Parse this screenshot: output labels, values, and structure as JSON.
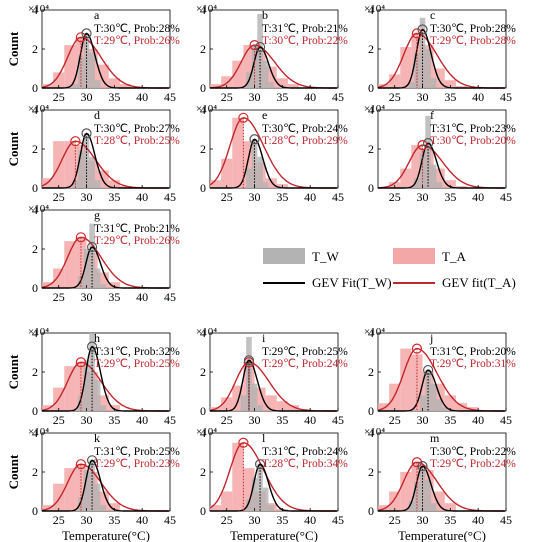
{
  "figure": {
    "colors": {
      "tw_bar": "#b3b3b3",
      "ta_bar": "#f4a7a7",
      "tw_line": "#000000",
      "ta_line": "#c1272d",
      "ta_text": "#c1272d",
      "tw_text": "#000000",
      "tw_marker": "#555555",
      "ta_marker": "#d62728"
    },
    "legend": {
      "tw_bar": "T_W",
      "ta_bar": "T_A",
      "tw_fit": "GEV Fit(T_W)",
      "ta_fit": "GEV fit(T_A)"
    },
    "ylabel": "Count",
    "xlabel": "Temperature(°C)",
    "exponent_label": "×10⁴"
  },
  "chart_data": [
    {
      "type": "bar",
      "panel": "a",
      "xlim": [
        22,
        45
      ],
      "ylim": [
        0,
        4
      ],
      "xticks": [
        25,
        30,
        35,
        40,
        45
      ],
      "yticks": [
        0,
        2,
        4
      ],
      "tw_label": "T:30℃, Prob:28%",
      "ta_label": "T:29℃, Prob:26%",
      "tw_peak": {
        "x": 30,
        "y": 2.8
      },
      "ta_peak": {
        "x": 29,
        "y": 2.6
      },
      "tw_hist": [
        [
          28,
          0.2
        ],
        [
          29,
          1.6
        ],
        [
          30,
          2.8
        ],
        [
          31,
          1.8
        ],
        [
          32,
          0.4
        ]
      ],
      "ta_hist": [
        [
          23,
          0.2
        ],
        [
          25,
          0.8
        ],
        [
          27,
          2.2
        ],
        [
          29,
          2.6
        ],
        [
          31,
          2.0
        ],
        [
          33,
          1.2
        ],
        [
          35,
          0.5
        ],
        [
          37,
          0.2
        ]
      ]
    },
    {
      "type": "bar",
      "panel": "b",
      "xlim": [
        22,
        45
      ],
      "ylim": [
        0,
        4
      ],
      "xticks": [
        25,
        30,
        35,
        40,
        45
      ],
      "yticks": [
        0,
        2,
        4
      ],
      "tw_label": "T:31℃, Prob:21%",
      "ta_label": "T:30℃, Prob:22%",
      "tw_peak": {
        "x": 31,
        "y": 2.1
      },
      "ta_peak": {
        "x": 30,
        "y": 2.2
      },
      "tw_hist": [
        [
          29,
          0.8
        ],
        [
          30,
          2.2
        ],
        [
          31,
          3.8
        ],
        [
          32,
          1.4
        ],
        [
          33,
          0.3
        ]
      ],
      "ta_hist": [
        [
          23,
          0.2
        ],
        [
          25,
          0.6
        ],
        [
          27,
          1.4
        ],
        [
          29,
          2.2
        ],
        [
          31,
          1.9
        ],
        [
          33,
          1.1
        ],
        [
          35,
          0.5
        ],
        [
          37,
          0.2
        ]
      ]
    },
    {
      "type": "bar",
      "panel": "c",
      "xlim": [
        22,
        45
      ],
      "ylim": [
        0,
        4
      ],
      "xticks": [
        25,
        30,
        35,
        40,
        45
      ],
      "yticks": [
        0,
        2,
        4
      ],
      "tw_label": "T:30℃, Prob:28%",
      "ta_label": "T:29℃, Prob:28%",
      "tw_peak": {
        "x": 30,
        "y": 3.0
      },
      "ta_peak": {
        "x": 29,
        "y": 2.8
      },
      "tw_hist": [
        [
          28,
          0.3
        ],
        [
          29,
          1.8
        ],
        [
          30,
          3.6
        ],
        [
          31,
          2.0
        ],
        [
          32,
          0.5
        ]
      ],
      "ta_hist": [
        [
          23,
          0.2
        ],
        [
          25,
          0.7
        ],
        [
          27,
          2.1
        ],
        [
          29,
          2.8
        ],
        [
          31,
          2.2
        ],
        [
          33,
          1.0
        ],
        [
          35,
          0.4
        ],
        [
          37,
          0.1
        ]
      ]
    },
    {
      "type": "bar",
      "panel": "d",
      "xlim": [
        22,
        45
      ],
      "ylim": [
        0,
        4
      ],
      "xticks": [
        25,
        30,
        35,
        40,
        45
      ],
      "yticks": [
        0,
        2,
        4
      ],
      "tw_label": "T:30℃, Prob:27%",
      "ta_label": "T:28℃, Prob:25%",
      "tw_peak": {
        "x": 30,
        "y": 2.8
      },
      "ta_peak": {
        "x": 28,
        "y": 2.4
      },
      "tw_hist": [
        [
          28,
          0.4
        ],
        [
          29,
          1.9
        ],
        [
          30,
          2.8
        ],
        [
          31,
          1.6
        ],
        [
          32,
          0.4
        ]
      ],
      "ta_hist": [
        [
          23,
          0.5
        ],
        [
          25,
          2.4
        ],
        [
          27,
          2.4
        ],
        [
          29,
          2.2
        ],
        [
          31,
          1.4
        ],
        [
          33,
          0.9
        ],
        [
          35,
          0.4
        ],
        [
          37,
          0.1
        ]
      ]
    },
    {
      "type": "bar",
      "panel": "e",
      "xlim": [
        22,
        45
      ],
      "ylim": [
        0,
        4
      ],
      "xticks": [
        25,
        30,
        35,
        40,
        45
      ],
      "yticks": [
        0,
        2,
        4
      ],
      "tw_label": "T:30℃, Prob:24%",
      "ta_label": "T:28℃, Prob:29%",
      "tw_peak": {
        "x": 30,
        "y": 2.5
      },
      "ta_peak": {
        "x": 28,
        "y": 3.6
      },
      "tw_hist": [
        [
          29,
          1.0
        ],
        [
          30,
          2.5
        ],
        [
          31,
          1.6
        ],
        [
          32,
          0.3
        ]
      ],
      "ta_hist": [
        [
          23,
          0.4
        ],
        [
          25,
          1.5
        ],
        [
          27,
          3.6
        ],
        [
          29,
          2.4
        ],
        [
          31,
          1.3
        ],
        [
          33,
          0.5
        ],
        [
          35,
          0.2
        ]
      ]
    },
    {
      "type": "bar",
      "panel": "f",
      "xlim": [
        22,
        45
      ],
      "ylim": [
        0,
        4
      ],
      "xticks": [
        25,
        30,
        35,
        40,
        45
      ],
      "yticks": [
        0,
        2,
        4
      ],
      "tw_label": "T:31℃, Prob:23%",
      "ta_label": "T:30℃, Prob:20%",
      "tw_peak": {
        "x": 31,
        "y": 2.3
      },
      "ta_peak": {
        "x": 30,
        "y": 2.2
      },
      "tw_hist": [
        [
          29,
          0.5
        ],
        [
          30,
          1.8
        ],
        [
          31,
          3.7
        ],
        [
          32,
          1.2
        ],
        [
          33,
          0.3
        ]
      ],
      "ta_hist": [
        [
          25,
          0.3
        ],
        [
          27,
          1.0
        ],
        [
          29,
          2.2
        ],
        [
          31,
          2.0
        ],
        [
          33,
          1.0
        ],
        [
          35,
          0.4
        ],
        [
          37,
          0.1
        ]
      ]
    },
    {
      "type": "bar",
      "panel": "g",
      "xlim": [
        22,
        45
      ],
      "ylim": [
        0,
        4
      ],
      "xticks": [
        25,
        30,
        35,
        40,
        45
      ],
      "yticks": [
        0,
        2,
        4
      ],
      "tw_label": "T:31℃, Prob:21%",
      "ta_label": "T:29℃, Prob:26%",
      "tw_peak": {
        "x": 31,
        "y": 2.1
      },
      "ta_peak": {
        "x": 29,
        "y": 2.6
      },
      "tw_hist": [
        [
          29,
          0.6
        ],
        [
          30,
          2.0
        ],
        [
          31,
          3.3
        ],
        [
          32,
          1.0
        ],
        [
          33,
          0.2
        ]
      ],
      "ta_hist": [
        [
          23,
          0.3
        ],
        [
          25,
          1.0
        ],
        [
          27,
          2.4
        ],
        [
          29,
          2.6
        ],
        [
          31,
          1.8
        ],
        [
          33,
          0.8
        ],
        [
          35,
          0.3
        ]
      ]
    },
    {
      "type": "bar",
      "panel": "h",
      "xlim": [
        22,
        45
      ],
      "ylim": [
        0,
        4
      ],
      "xticks": [
        25,
        30,
        35,
        40,
        45
      ],
      "yticks": [
        0,
        2,
        4
      ],
      "tw_label": "T:31℃, Prob:32%",
      "ta_label": "T:29℃, Prob:25%",
      "tw_peak": {
        "x": 31,
        "y": 3.3
      },
      "ta_peak": {
        "x": 29,
        "y": 2.5
      },
      "tw_hist": [
        [
          29,
          0.8
        ],
        [
          30,
          2.6
        ],
        [
          31,
          4.0
        ],
        [
          32,
          1.6
        ],
        [
          33,
          0.3
        ]
      ],
      "ta_hist": [
        [
          23,
          0.3
        ],
        [
          25,
          1.2
        ],
        [
          27,
          2.3
        ],
        [
          29,
          2.5
        ],
        [
          31,
          2.0
        ],
        [
          33,
          0.8
        ],
        [
          35,
          0.3
        ]
      ]
    },
    {
      "type": "bar",
      "panel": "i",
      "xlim": [
        22,
        45
      ],
      "ylim": [
        0,
        4
      ],
      "xticks": [
        25,
        30,
        35,
        40,
        45
      ],
      "yticks": [
        0,
        2,
        4
      ],
      "tw_label": "T:29℃, Prob:25%",
      "ta_label": "T:29℃, Prob:24%",
      "tw_peak": {
        "x": 29,
        "y": 2.6
      },
      "ta_peak": {
        "x": 29,
        "y": 2.5
      },
      "tw_hist": [
        [
          28,
          0.8
        ],
        [
          29,
          3.8
        ],
        [
          30,
          1.4
        ],
        [
          31,
          0.3
        ]
      ],
      "ta_hist": [
        [
          23,
          0.2
        ],
        [
          25,
          0.7
        ],
        [
          27,
          1.3
        ],
        [
          29,
          2.5
        ],
        [
          31,
          1.2
        ],
        [
          33,
          0.8
        ],
        [
          35,
          0.5
        ],
        [
          37,
          0.3
        ],
        [
          39,
          0.1
        ]
      ]
    },
    {
      "type": "bar",
      "panel": "j",
      "xlim": [
        22,
        45
      ],
      "ylim": [
        0,
        4
      ],
      "xticks": [
        25,
        30,
        35,
        40,
        45
      ],
      "yticks": [
        0,
        2,
        4
      ],
      "tw_label": "T:31℃, Prob:20%",
      "ta_label": "T:29℃, Prob:31%",
      "tw_peak": {
        "x": 31,
        "y": 2.1
      },
      "ta_peak": {
        "x": 29,
        "y": 3.2
      },
      "tw_hist": [
        [
          30,
          0.8
        ],
        [
          31,
          2.1
        ],
        [
          32,
          1.4
        ],
        [
          33,
          0.6
        ],
        [
          34,
          0.2
        ]
      ],
      "ta_hist": [
        [
          23,
          0.4
        ],
        [
          25,
          1.4
        ],
        [
          27,
          3.2
        ],
        [
          29,
          2.9
        ],
        [
          31,
          2.0
        ],
        [
          33,
          1.4
        ],
        [
          35,
          0.8
        ],
        [
          37,
          0.4
        ],
        [
          39,
          0.2
        ]
      ]
    },
    {
      "type": "bar",
      "panel": "k",
      "xlim": [
        22,
        45
      ],
      "ylim": [
        0,
        4
      ],
      "xticks": [
        25,
        30,
        35,
        40,
        45
      ],
      "yticks": [
        0,
        2,
        4
      ],
      "tw_label": "T:31℃, Prob:25%",
      "ta_label": "T:29℃, Prob:23%",
      "tw_peak": {
        "x": 31,
        "y": 2.6
      },
      "ta_peak": {
        "x": 29,
        "y": 2.4
      },
      "tw_hist": [
        [
          29,
          0.7
        ],
        [
          30,
          2.1
        ],
        [
          31,
          2.6
        ],
        [
          32,
          1.4
        ],
        [
          33,
          0.3
        ]
      ],
      "ta_hist": [
        [
          23,
          0.3
        ],
        [
          25,
          1.4
        ],
        [
          27,
          2.2
        ],
        [
          29,
          2.4
        ],
        [
          31,
          2.0
        ],
        [
          33,
          1.0
        ],
        [
          35,
          0.4
        ]
      ]
    },
    {
      "type": "bar",
      "panel": "l",
      "xlim": [
        22,
        45
      ],
      "ylim": [
        0,
        4
      ],
      "xticks": [
        25,
        30,
        35,
        40,
        45
      ],
      "yticks": [
        0,
        2,
        4
      ],
      "tw_label": "T:31℃, Prob:24%",
      "ta_label": "T:28℃, Prob:34%",
      "tw_peak": {
        "x": 31,
        "y": 2.4
      },
      "ta_peak": {
        "x": 28,
        "y": 3.5
      },
      "tw_hist": [
        [
          29,
          0.6
        ],
        [
          30,
          1.7
        ],
        [
          31,
          2.4
        ],
        [
          32,
          1.2
        ],
        [
          33,
          0.3
        ]
      ],
      "ta_hist": [
        [
          23,
          0.3
        ],
        [
          25,
          1.0
        ],
        [
          27,
          3.5
        ],
        [
          29,
          2.2
        ],
        [
          31,
          1.0
        ],
        [
          33,
          0.4
        ],
        [
          35,
          0.1
        ]
      ]
    },
    {
      "type": "bar",
      "panel": "m",
      "xlim": [
        22,
        45
      ],
      "ylim": [
        0,
        4
      ],
      "xticks": [
        25,
        30,
        35,
        40,
        45
      ],
      "yticks": [
        0,
        2,
        4
      ],
      "tw_label": "T:30℃, Prob:22%",
      "ta_label": "T:29℃, Prob:24%",
      "tw_peak": {
        "x": 30,
        "y": 2.3
      },
      "ta_peak": {
        "x": 29,
        "y": 2.5
      },
      "tw_hist": [
        [
          28,
          0.5
        ],
        [
          29,
          1.5
        ],
        [
          30,
          2.3
        ],
        [
          31,
          1.6
        ],
        [
          32,
          0.4
        ]
      ],
      "ta_hist": [
        [
          23,
          0.3
        ],
        [
          25,
          1.0
        ],
        [
          27,
          2.0
        ],
        [
          29,
          2.5
        ],
        [
          31,
          2.1
        ],
        [
          33,
          1.0
        ],
        [
          35,
          0.4
        ]
      ]
    }
  ]
}
